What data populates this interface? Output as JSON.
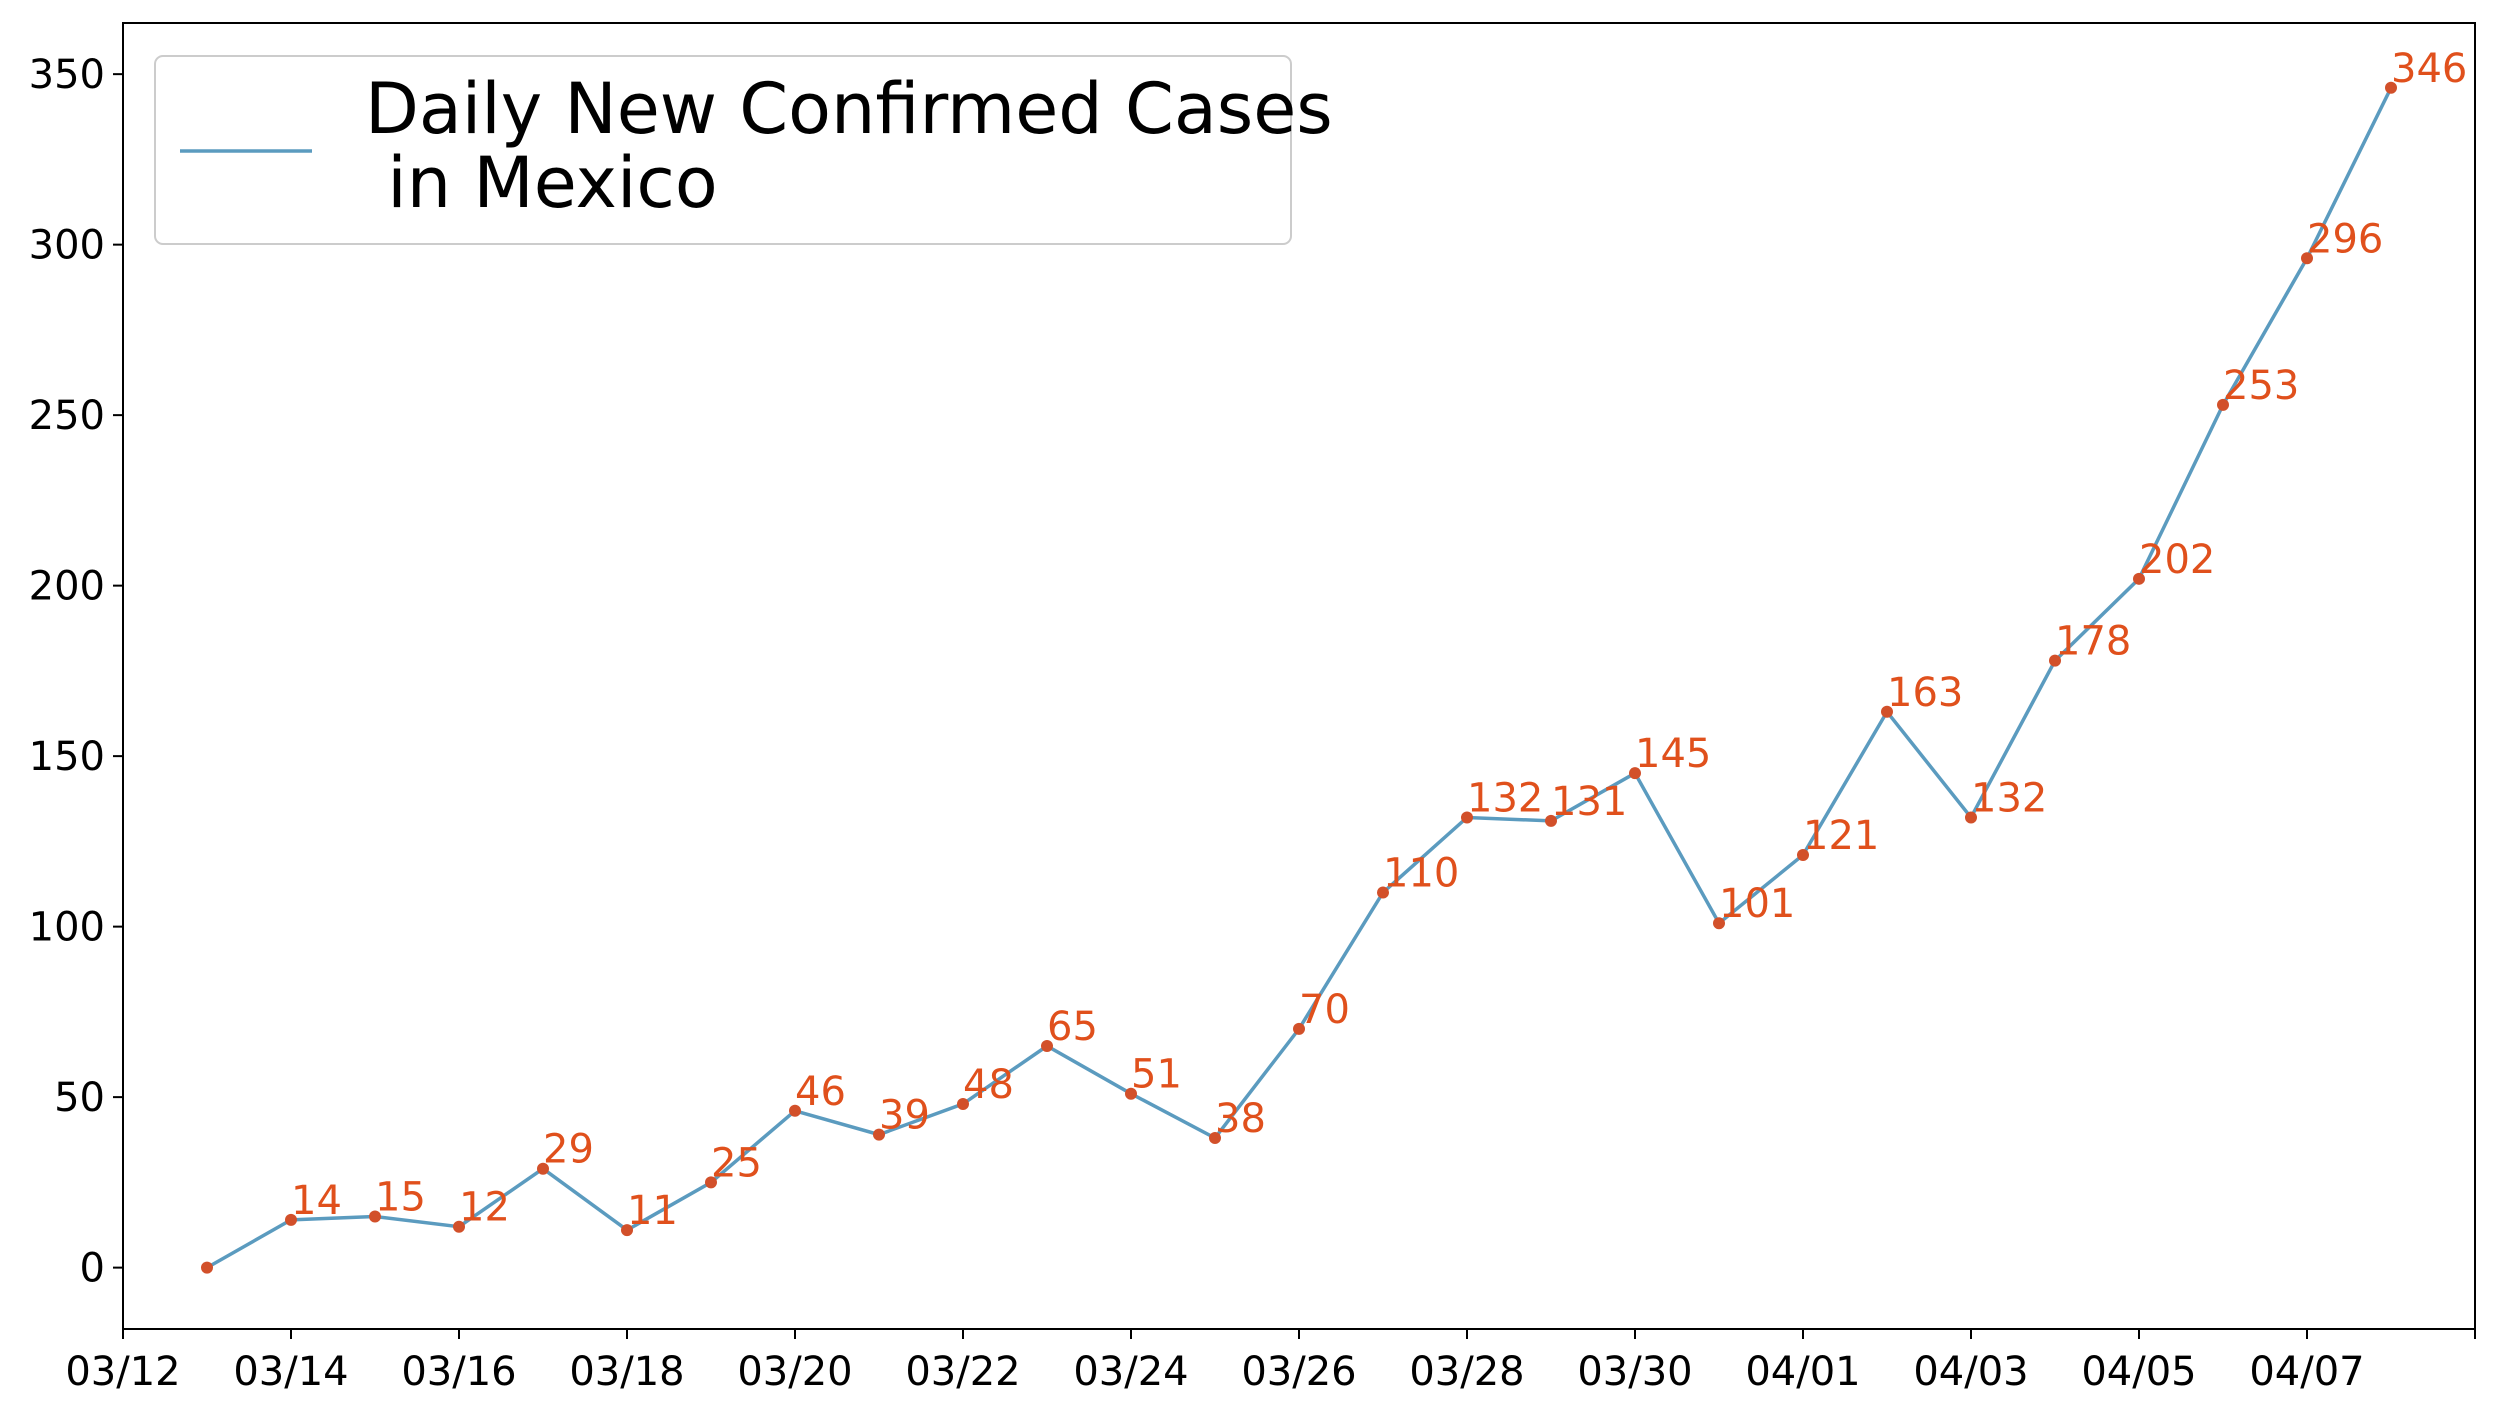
{
  "chart_data": {
    "type": "line",
    "title": "",
    "xlabel": "",
    "ylabel": "",
    "x": [
      "03/13",
      "03/14",
      "03/15",
      "03/16",
      "03/17",
      "03/18",
      "03/19",
      "03/20",
      "03/21",
      "03/22",
      "03/23",
      "03/24",
      "03/25",
      "03/26",
      "03/27",
      "03/28",
      "03/29",
      "03/30",
      "03/31",
      "04/01",
      "04/02",
      "04/03",
      "04/04",
      "04/05",
      "04/06",
      "04/07",
      "04/08"
    ],
    "series": [
      {
        "name": "Daily New Confirmed Cases\n in Mexico",
        "values": [
          0,
          14,
          15,
          12,
          29,
          11,
          25,
          46,
          39,
          48,
          65,
          51,
          38,
          70,
          110,
          132,
          131,
          145,
          101,
          121,
          163,
          132,
          178,
          202,
          253,
          296,
          346
        ],
        "data_labels": [
          "",
          "14",
          "15",
          "12",
          "29",
          "11",
          "25",
          "46",
          "39",
          "48",
          "65",
          "51",
          "38",
          "70",
          "110",
          "132",
          "131",
          "145",
          "101",
          "121",
          "163",
          "132",
          "178",
          "202",
          "253",
          "296",
          "346"
        ]
      }
    ],
    "x_tick_labels": [
      "03/12",
      "03/14",
      "03/16",
      "03/18",
      "03/20",
      "03/22",
      "03/24",
      "03/26",
      "03/28",
      "03/30",
      "04/01",
      "04/03",
      "04/05",
      "04/07",
      ""
    ],
    "x_tick_dates": [
      "03/12",
      "03/14",
      "03/16",
      "03/18",
      "03/20",
      "03/22",
      "03/24",
      "03/26",
      "03/28",
      "03/30",
      "04/01",
      "04/03",
      "04/05",
      "04/07",
      "04/09"
    ],
    "y_ticks": [
      0,
      50,
      100,
      150,
      200,
      250,
      300,
      350
    ],
    "xlim": [
      "03/12",
      "04/09"
    ],
    "ylim": [
      -18,
      365
    ],
    "grid": false,
    "legend_position": "top-left",
    "colors": {
      "line": "#5b9bbf",
      "marker": "#d2502a",
      "label": "#e0501c"
    }
  }
}
